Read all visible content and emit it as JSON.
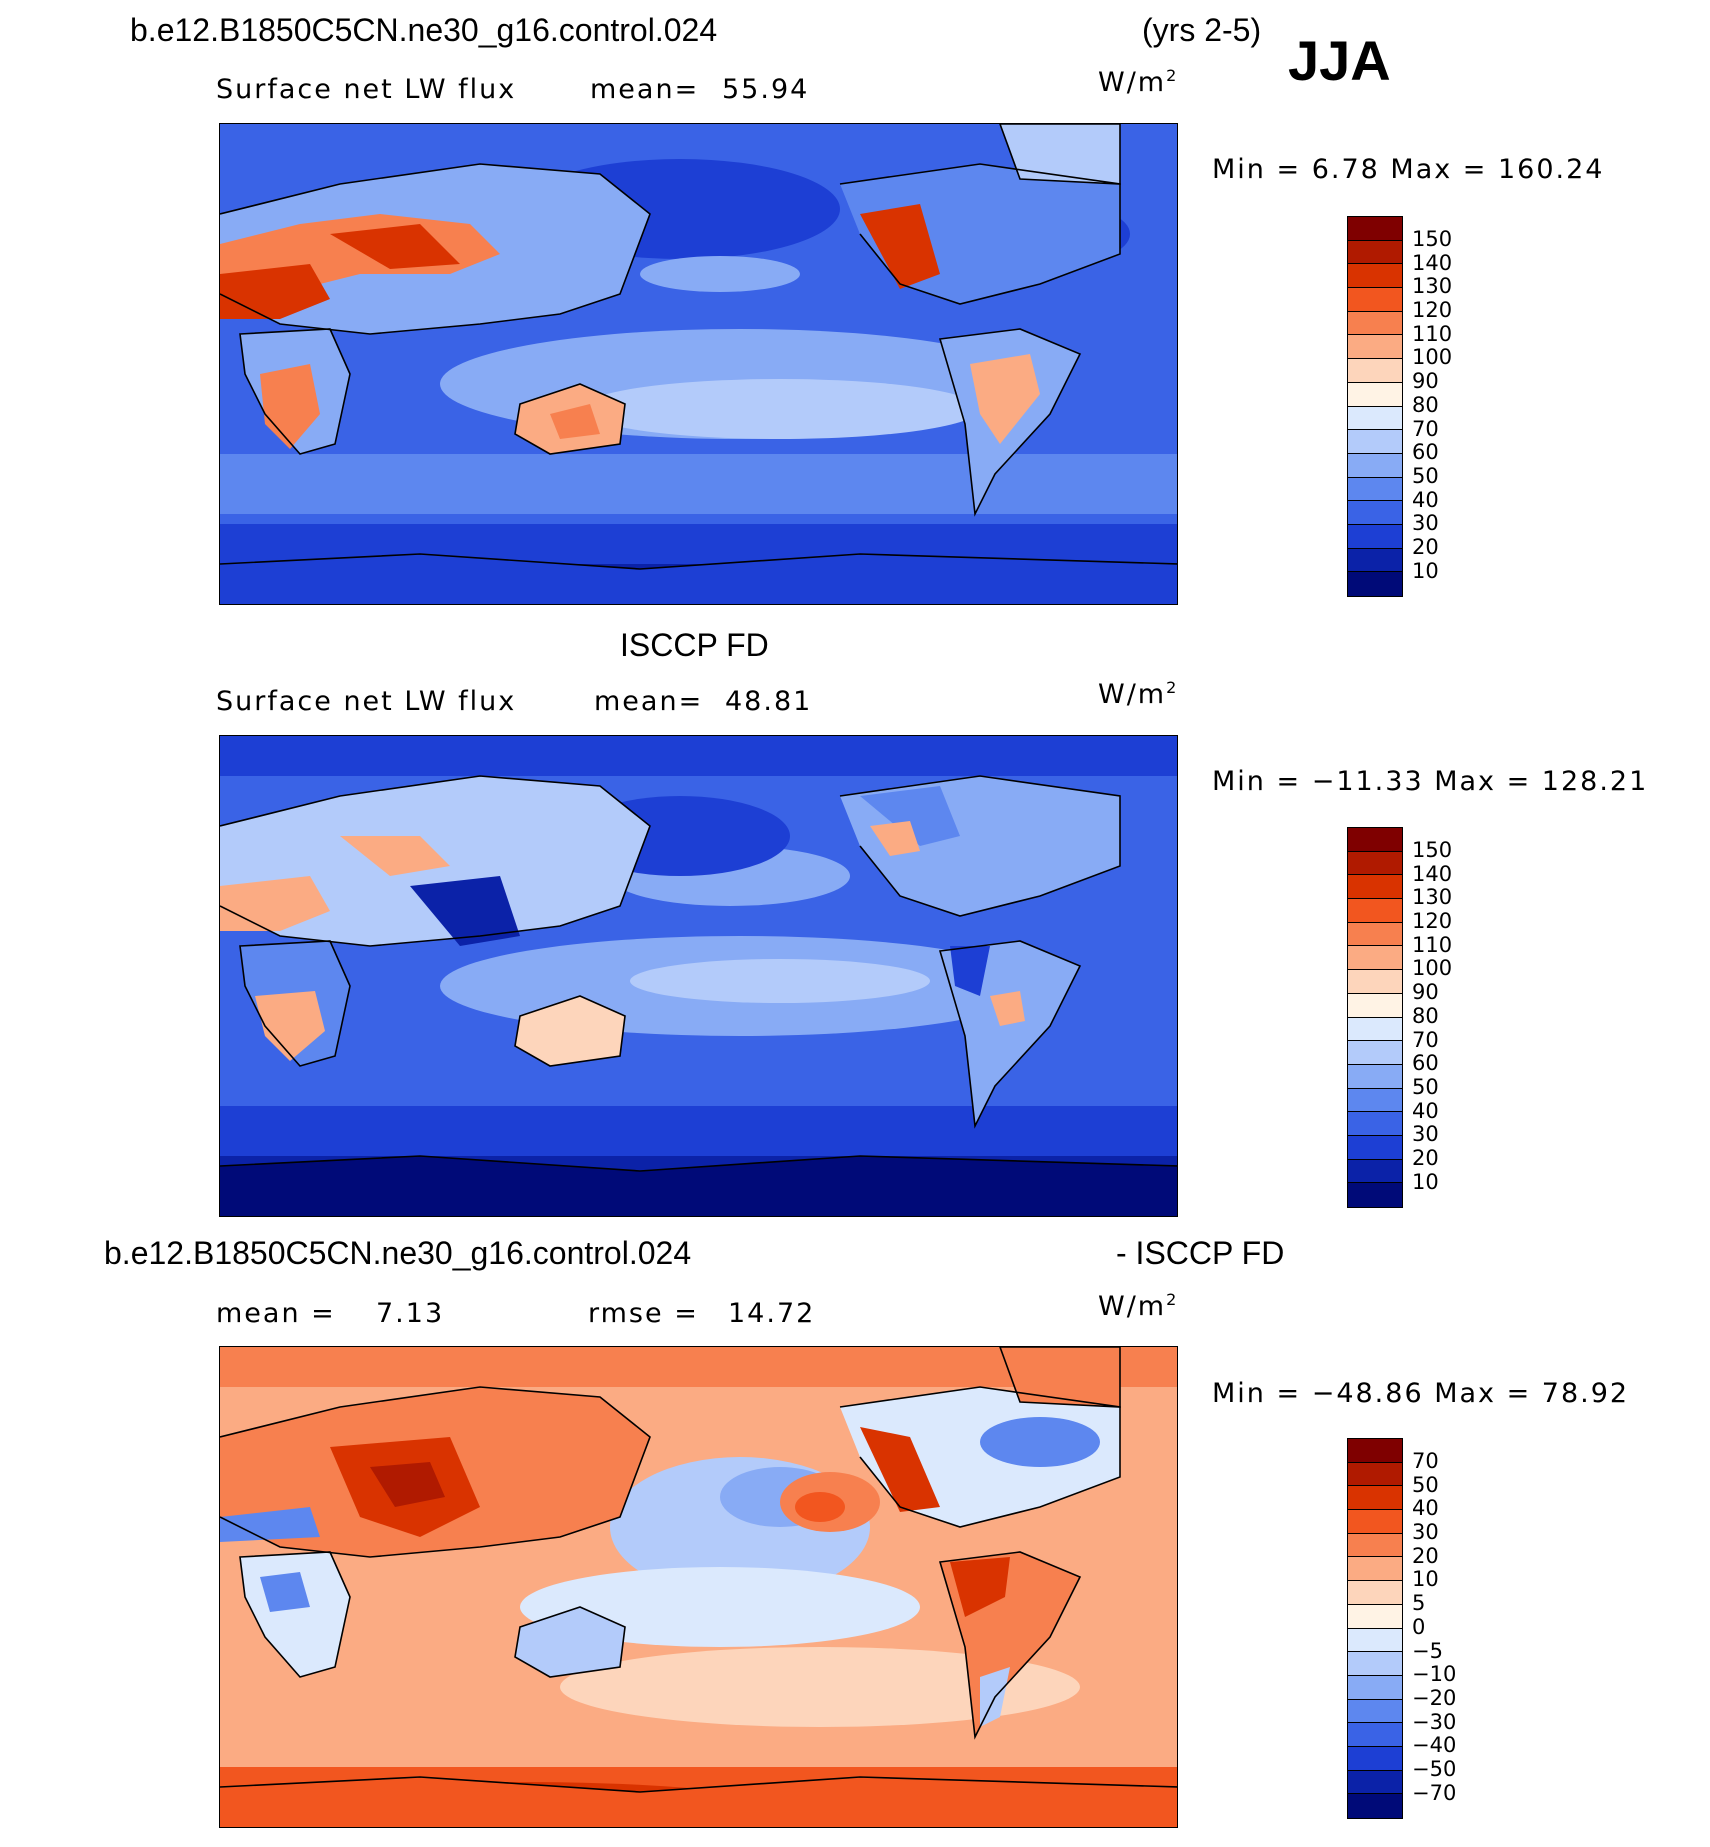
{
  "header": {
    "case_name": "b.e12.B1850C5CN.ne30_g16.control.024",
    "years": "(yrs 2-5)",
    "season": "JJA"
  },
  "panel1": {
    "variable": "Surface net LW flux",
    "mean_label": "mean=",
    "mean_value": "55.94",
    "units": "W/m",
    "units_exp": "2",
    "minmax": "Min =    6.78 Max = 160.24",
    "colorbar_ticks": [
      "150",
      "140",
      "130",
      "120",
      "110",
      "100",
      "90",
      "80",
      "70",
      "60",
      "50",
      "40",
      "30",
      "20",
      "10"
    ],
    "colors": [
      "#7f0000",
      "#b01a00",
      "#d93300",
      "#f2561f",
      "#f7804f",
      "#fbab83",
      "#fdd5bb",
      "#fff3e5",
      "#dbe9fd",
      "#b3cbfa",
      "#88abf5",
      "#5d87ef",
      "#3a63e6",
      "#1d3fd4",
      "#0b22a8",
      "#000a78"
    ]
  },
  "panel2": {
    "title": "ISCCP FD",
    "variable": "Surface net LW flux",
    "mean_label": "mean=",
    "mean_value": "48.81",
    "units": "W/m",
    "units_exp": "2",
    "minmax": "Min = −11.33 Max = 128.21",
    "colorbar_ticks": [
      "150",
      "140",
      "130",
      "120",
      "110",
      "100",
      "90",
      "80",
      "70",
      "60",
      "50",
      "40",
      "30",
      "20",
      "10"
    ],
    "colors": [
      "#7f0000",
      "#b01a00",
      "#d93300",
      "#f2561f",
      "#f7804f",
      "#fbab83",
      "#fdd5bb",
      "#fff3e5",
      "#dbe9fd",
      "#b3cbfa",
      "#88abf5",
      "#5d87ef",
      "#3a63e6",
      "#1d3fd4",
      "#0b22a8",
      "#000a78"
    ]
  },
  "panel3": {
    "title_left": "b.e12.B1850C5CN.ne30_g16.control.024",
    "title_right": "- ISCCP FD",
    "mean_label": "mean =",
    "mean_value": "7.13",
    "rmse_label": "rmse =",
    "rmse_value": "14.72",
    "units": "W/m",
    "units_exp": "2",
    "minmax": "Min = −48.86 Max =   78.92",
    "colorbar_ticks": [
      "70",
      "50",
      "40",
      "30",
      "20",
      "10",
      "5",
      "0",
      "−5",
      "−10",
      "−20",
      "−30",
      "−40",
      "−50",
      "−70"
    ],
    "colors": [
      "#7f0000",
      "#b01a00",
      "#d93300",
      "#f2561f",
      "#f7804f",
      "#fbab83",
      "#fdd5bb",
      "#fff3e5",
      "#dbe9fd",
      "#b3cbfa",
      "#88abf5",
      "#5d87ef",
      "#3a63e6",
      "#1d3fd4",
      "#0b22a8",
      "#000a78"
    ]
  }
}
